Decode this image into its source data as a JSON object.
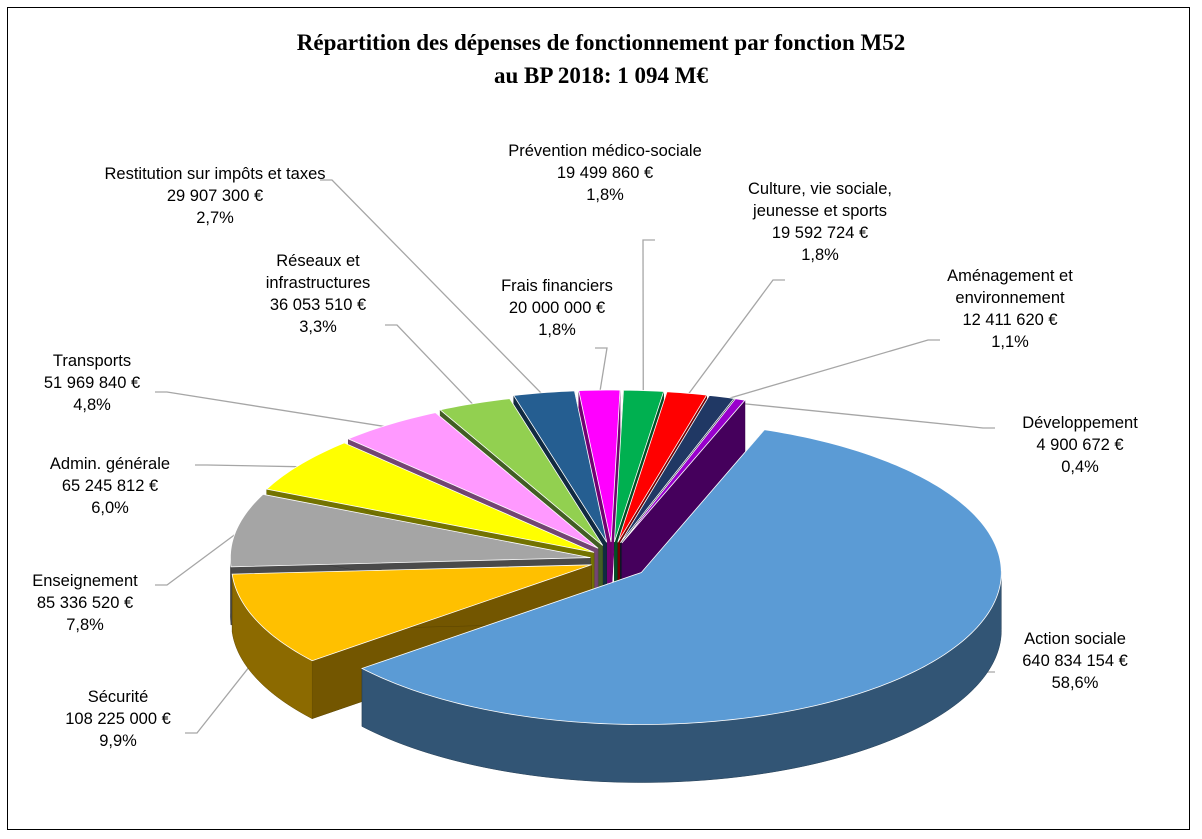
{
  "chart_data": {
    "type": "pie",
    "title": "Répartition des dépenses de fonctionnement par fonction M52",
    "subtitle": "au BP 2018: 1 094 M€",
    "categories": [
      "Action sociale",
      "Sécurité",
      "Enseignement",
      "Admin. générale",
      "Transports",
      "Réseaux et infrastructures",
      "Restitution sur impôts et taxes",
      "Frais financiers",
      "Prévention médico-sociale",
      "Culture, vie sociale, jeunesse et sports",
      "Aménagement et environnement",
      "Développement"
    ],
    "values": [
      640834154,
      108225000,
      85336520,
      65245812,
      51969840,
      36053510,
      29907300,
      20000000,
      19499860,
      19592724,
      12411620,
      4900672
    ],
    "value_labels": [
      "640 834 154 €",
      "108 225 000 €",
      "85 336 520 €",
      "65 245 812 €",
      "51 969 840 €",
      "36 053 510 €",
      "29 907 300 €",
      "20 000 000 €",
      "19 499 860 €",
      "19 592 724 €",
      "12 411 620 €",
      "4 900 672 €"
    ],
    "percents": [
      58.6,
      9.9,
      7.8,
      6.0,
      4.8,
      3.3,
      2.7,
      1.8,
      1.8,
      1.8,
      1.1,
      0.4
    ],
    "percent_labels": [
      "58,6%",
      "9,9%",
      "7,8%",
      "6,0%",
      "4,8%",
      "3,3%",
      "2,7%",
      "1,8%",
      "1,8%",
      "1,8%",
      "1,1%",
      "0,4%"
    ],
    "colors": [
      "#5b9bd5",
      "#ffc000",
      "#a5a5a5",
      "#ffff00",
      "#ff99ff",
      "#92d050",
      "#255e91",
      "#ff00ff",
      "#00b050",
      "#ff0000",
      "#203864",
      "#9900cc"
    ]
  }
}
